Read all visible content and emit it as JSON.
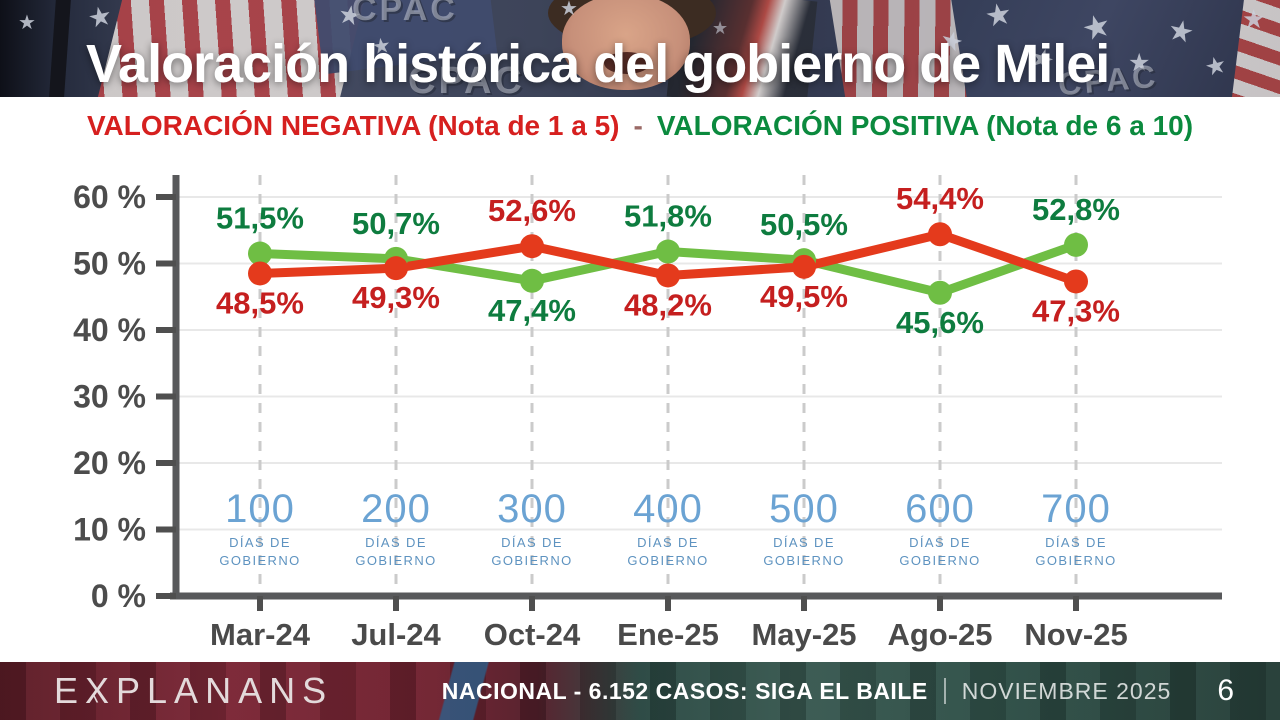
{
  "header": {
    "title": "Valoración histórica del gobierno de Milei",
    "backdrop_texts": [
      "CPAC",
      "CPAC",
      "CPAC"
    ]
  },
  "legend": {
    "negative": "VALORACIÓN NEGATIVA (Nota de 1 a 5)",
    "separator": "-",
    "positive": "VALORACIÓN POSITIVA (Nota de 6 a 10)"
  },
  "chart_data": {
    "type": "line",
    "title": "Valoración histórica del gobierno de Milei",
    "categories": [
      "Mar-24",
      "Jul-24",
      "Oct-24",
      "Ene-25",
      "May-25",
      "Ago-25",
      "Nov-25"
    ],
    "series": [
      {
        "name": "VALORACIÓN NEGATIVA (Nota de 1 a 5)",
        "color": "#e43a1c",
        "label_color": "#c51f1f",
        "values": [
          48.5,
          49.3,
          52.6,
          48.2,
          49.5,
          54.4,
          47.3
        ],
        "labels": [
          "48,5%",
          "49,3%",
          "52,6%",
          "48,2%",
          "49,5%",
          "54,4%",
          "47,3%"
        ]
      },
      {
        "name": "VALORACIÓN POSITIVA (Nota de 6 a 10)",
        "color": "#6fbe44",
        "label_color": "#0e7c3f",
        "values": [
          51.5,
          50.7,
          47.4,
          51.8,
          50.5,
          45.6,
          52.8
        ],
        "labels": [
          "51,5%",
          "50,7%",
          "47,4%",
          "51,8%",
          "50,5%",
          "45,6%",
          "52,8%"
        ]
      }
    ],
    "y_ticks": [
      "0 %",
      "10 %",
      "20 %",
      "30 %",
      "40 %",
      "50 %",
      "60 %"
    ],
    "ylim": [
      0,
      60
    ],
    "grid": true,
    "legend_position": "top",
    "days_markers": {
      "numbers": [
        "100",
        "200",
        "300",
        "400",
        "500",
        "600",
        "700"
      ],
      "caption_line1": "DÍAS DE",
      "caption_line2": "GOBIERNO"
    }
  },
  "footer": {
    "logo": "EXPLANANS",
    "logo_caret": "^",
    "stats_regular": "NACIONAL - 6.152 CASOS:",
    "stats_bold": "SIGA EL BAILE",
    "date": "NOVIEMBRE 2025",
    "page_number": "6"
  }
}
